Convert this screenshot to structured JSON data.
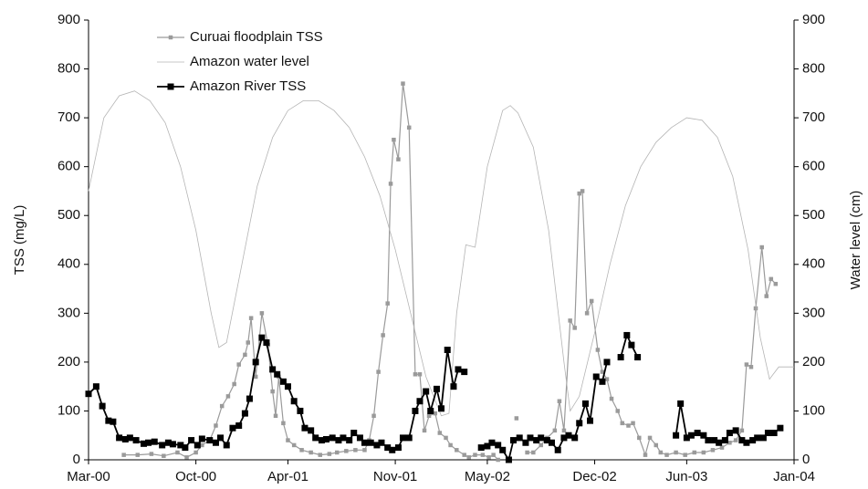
{
  "chart_data": {
    "type": "line",
    "xlabel": null,
    "ylabel": "TSS (mg/L)",
    "y2label": "Water level (cm)",
    "xlim": [
      0,
      46
    ],
    "xticks": [
      {
        "value": 0,
        "label": "Mar-00"
      },
      {
        "value": 7,
        "label": "Oct-00"
      },
      {
        "value": 13,
        "label": "Apr-01"
      },
      {
        "value": 20,
        "label": "Nov-01"
      },
      {
        "value": 26,
        "label": "May-02"
      },
      {
        "value": 33,
        "label": "Dec-02"
      },
      {
        "value": 39,
        "label": "Jun-03"
      },
      {
        "value": 46,
        "label": "Jan-04"
      }
    ],
    "ylim": [
      0,
      900
    ],
    "yticks": [
      0,
      100,
      200,
      300,
      400,
      500,
      600,
      700,
      800,
      900
    ],
    "y2lim": [
      0,
      900
    ],
    "y2ticks": [
      0,
      100,
      200,
      300,
      400,
      500,
      600,
      700,
      800,
      900
    ],
    "legend": "upper left",
    "series": [
      {
        "name": "Curuai floodplain TSS",
        "color": "#9a9a9a",
        "marker": "square",
        "x": [
          2.3,
          3.2,
          4.1,
          4.9,
          5.8,
          6.4,
          7.0,
          7.4,
          7.9,
          8.3,
          8.7,
          9.1,
          9.5,
          9.8,
          10.2,
          10.4,
          10.6,
          10.9,
          11.3,
          11.7,
          12.0,
          12.2,
          12.4,
          12.7,
          13.0,
          13.4,
          13.9,
          14.5,
          15.1,
          15.7,
          16.2,
          16.8,
          17.4,
          18.0,
          18.3,
          18.6,
          18.9,
          19.2,
          19.5,
          19.7,
          19.9,
          20.2,
          20.5,
          20.9,
          21.3,
          21.6,
          21.9,
          22.2,
          22.6,
          22.9,
          23.3,
          23.6,
          24.0,
          24.5,
          24.8,
          25.2,
          25.7,
          26.1,
          26.4,
          26.7,
          27.3,
          27.9,
          28.2,
          28.6,
          29.0,
          29.5,
          29.9,
          30.4,
          30.7,
          31.0,
          31.4,
          31.7,
          32.0,
          32.2,
          32.5,
          32.8,
          33.2,
          33.5,
          33.8,
          34.1,
          34.5,
          34.8,
          35.2,
          35.5,
          35.9,
          36.3,
          36.6,
          37.0,
          37.3,
          37.7,
          38.3,
          38.9,
          39.5,
          40.1,
          40.7,
          41.3,
          41.8,
          42.2,
          42.6,
          42.9,
          43.2,
          43.5,
          43.9,
          44.2,
          44.5,
          44.8
        ],
        "values": [
          10,
          10,
          12,
          8,
          15,
          5,
          15,
          30,
          40,
          70,
          110,
          130,
          155,
          195,
          215,
          240,
          290,
          170,
          300,
          235,
          140,
          90,
          170,
          75,
          40,
          30,
          20,
          15,
          10,
          12,
          15,
          18,
          20,
          20,
          40,
          90,
          180,
          255,
          320,
          565,
          655,
          615,
          770,
          680,
          175,
          175,
          60,
          90,
          95,
          55,
          45,
          30,
          20,
          10,
          5,
          10,
          10,
          5,
          10,
          0,
          null,
          85,
          null,
          15,
          15,
          30,
          45,
          60,
          120,
          60,
          285,
          270,
          545,
          550,
          300,
          325,
          225,
          180,
          165,
          125,
          100,
          75,
          70,
          75,
          45,
          10,
          45,
          30,
          15,
          10,
          15,
          10,
          15,
          15,
          20,
          25,
          35,
          40,
          60,
          195,
          190,
          310,
          435,
          335,
          370,
          360
        ]
      },
      {
        "name": "Amazon water level",
        "color": "#b4b4b4",
        "marker": "none",
        "axis": "y2",
        "x": [
          0,
          1,
          2,
          3,
          4,
          5,
          6,
          7,
          8,
          8.5,
          9,
          10,
          11,
          12,
          13,
          14,
          15,
          16,
          17,
          18,
          19,
          20,
          21,
          22,
          23,
          23.5,
          24,
          24.6,
          25.2,
          26,
          27,
          27.5,
          28,
          29,
          30,
          31,
          31.4,
          32,
          33,
          34,
          35,
          36,
          37,
          38,
          39,
          40,
          41,
          42,
          43,
          43.8,
          44.4,
          45,
          46
        ],
        "values": [
          550,
          700,
          745,
          755,
          735,
          690,
          600,
          470,
          300,
          230,
          240,
          400,
          560,
          660,
          715,
          735,
          735,
          715,
          680,
          620,
          540,
          430,
          300,
          170,
          90,
          95,
          300,
          440,
          435,
          600,
          715,
          725,
          710,
          640,
          470,
          200,
          100,
          130,
          260,
          400,
          520,
          600,
          650,
          680,
          700,
          695,
          660,
          580,
          430,
          250,
          165,
          190,
          190
        ]
      },
      {
        "name": "Amazon River TSS",
        "color": "#000000",
        "marker": "square",
        "x": [
          0,
          0.5,
          0.9,
          1.3,
          1.6,
          2.0,
          2.4,
          2.7,
          3.1,
          3.6,
          3.9,
          4.3,
          4.8,
          5.2,
          5.5,
          6.0,
          6.3,
          6.7,
          7.1,
          7.4,
          7.9,
          8.3,
          8.6,
          9.0,
          9.4,
          9.8,
          10.2,
          10.5,
          10.9,
          11.3,
          11.6,
          12.0,
          12.3,
          12.7,
          13.0,
          13.4,
          13.8,
          14.1,
          14.5,
          14.8,
          15.2,
          15.5,
          15.9,
          16.3,
          16.6,
          17.0,
          17.3,
          17.7,
          18.0,
          18.4,
          18.8,
          19.1,
          19.5,
          19.8,
          20.2,
          20.5,
          20.9,
          21.3,
          21.6,
          22.0,
          22.3,
          22.7,
          23.0,
          23.4,
          23.8,
          24.1,
          24.5,
          25.0,
          25.6,
          26.0,
          26.3,
          26.7,
          27.0,
          27.4,
          27.7,
          28.1,
          28.5,
          28.8,
          29.2,
          29.5,
          29.9,
          30.2,
          30.6,
          31.0,
          31.3,
          31.7,
          32.0,
          32.4,
          32.7,
          33.1,
          33.5,
          33.8,
          34.3,
          34.7,
          35.1,
          35.4,
          35.8,
          37.0,
          38.3,
          38.6,
          39.0,
          39.3,
          39.7,
          40.1,
          40.4,
          40.8,
          41.1,
          41.5,
          41.8,
          42.2,
          42.6,
          42.9,
          43.3,
          43.6,
          44.0,
          44.3,
          44.7,
          45.1
        ],
        "values": [
          135,
          150,
          110,
          80,
          78,
          45,
          42,
          45,
          40,
          33,
          35,
          37,
          30,
          35,
          32,
          30,
          25,
          40,
          30,
          43,
          40,
          35,
          45,
          30,
          65,
          70,
          95,
          125,
          200,
          250,
          240,
          185,
          175,
          160,
          150,
          120,
          100,
          65,
          60,
          45,
          40,
          42,
          45,
          40,
          45,
          40,
          55,
          45,
          35,
          35,
          30,
          35,
          25,
          20,
          25,
          45,
          45,
          100,
          120,
          140,
          100,
          145,
          105,
          225,
          150,
          185,
          180,
          null,
          25,
          28,
          35,
          30,
          20,
          0,
          40,
          45,
          35,
          45,
          40,
          45,
          40,
          35,
          20,
          45,
          50,
          45,
          75,
          115,
          80,
          170,
          160,
          200,
          null,
          210,
          255,
          235,
          210,
          null,
          50,
          115,
          45,
          50,
          55,
          50,
          40,
          40,
          35,
          40,
          55,
          60,
          40,
          35,
          40,
          45,
          45,
          55,
          55,
          65
        ]
      }
    ]
  }
}
